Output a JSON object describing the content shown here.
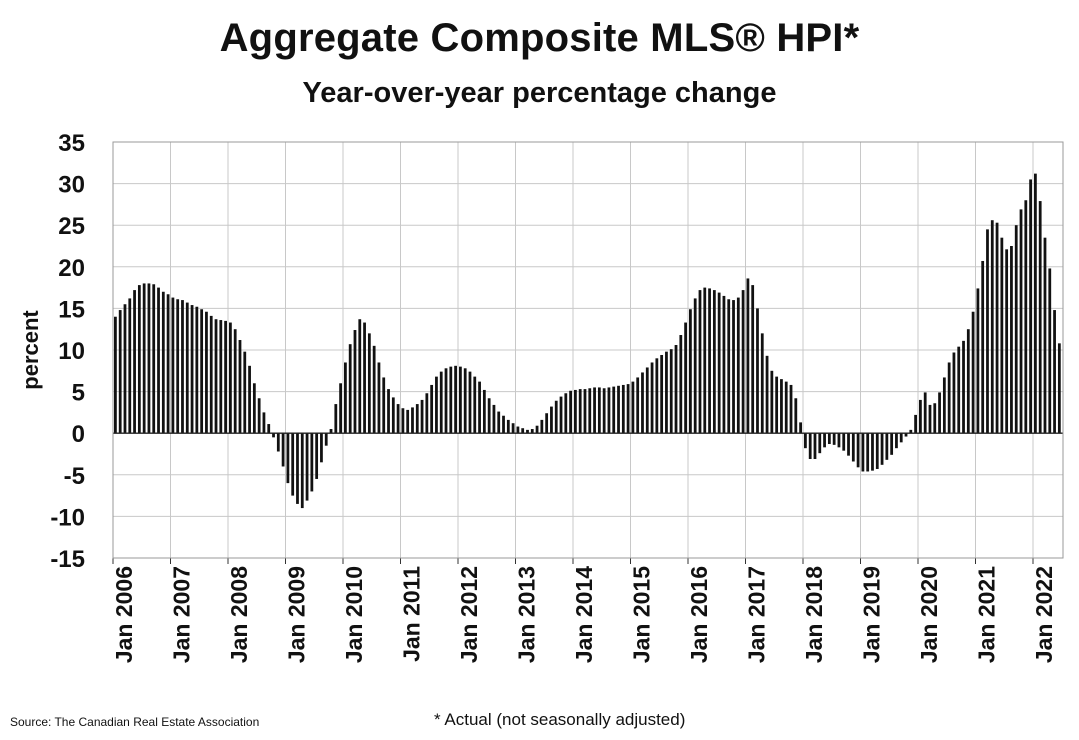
{
  "page": {
    "title": "Aggregate Composite MLS® HPI*",
    "subtitle": "Year-over-year percentage change",
    "source": "Source: The Canadian Real Estate Association",
    "footnote": "* Actual (not seasonally adjusted)"
  },
  "chart_data": {
    "type": "bar",
    "title": "Aggregate Composite MLS® HPI*",
    "subtitle": "Year-over-year percentage change",
    "ylabel": "percent",
    "xlabel": "",
    "ylim": [
      -15,
      35
    ],
    "yticks": [
      35,
      30,
      25,
      20,
      15,
      10,
      5,
      0,
      -5,
      -10,
      -15
    ],
    "grid": true,
    "legend": "none",
    "start": "Jan 2006",
    "xtick_labels": [
      "Jan 2006",
      "Jan 2007",
      "Jan 2008",
      "Jan 2009",
      "Jan 2010",
      "Jan 2011",
      "Jan 2012",
      "Jan 2013",
      "Jan 2014",
      "Jan 2015",
      "Jan 2016",
      "Jan 2017",
      "Jan 2018",
      "Jan 2019",
      "Jan 2020",
      "Jan 2021",
      "Jan 2022"
    ],
    "series": [
      {
        "name": "Year-over-year % change (monthly)",
        "values": [
          14.0,
          14.8,
          15.5,
          16.2,
          17.2,
          17.8,
          18.0,
          18.0,
          17.9,
          17.5,
          17.0,
          16.7,
          16.3,
          16.1,
          16.0,
          15.7,
          15.4,
          15.2,
          14.9,
          14.6,
          14.1,
          13.7,
          13.6,
          13.5,
          13.3,
          12.5,
          11.2,
          9.8,
          8.1,
          6.0,
          4.2,
          2.5,
          1.1,
          -0.5,
          -2.2,
          -4.0,
          -6.0,
          -7.5,
          -8.5,
          -9.0,
          -8.1,
          -7.0,
          -5.5,
          -3.5,
          -1.5,
          0.5,
          3.5,
          6.0,
          8.5,
          10.7,
          12.4,
          13.7,
          13.3,
          12.0,
          10.5,
          8.5,
          6.7,
          5.3,
          4.3,
          3.5,
          3.0,
          2.8,
          3.1,
          3.5,
          4.0,
          4.8,
          5.8,
          6.8,
          7.4,
          7.8,
          8.0,
          8.1,
          8.0,
          7.8,
          7.4,
          6.8,
          6.2,
          5.2,
          4.2,
          3.4,
          2.6,
          2.1,
          1.6,
          1.2,
          0.8,
          0.6,
          0.4,
          0.5,
          0.9,
          1.6,
          2.4,
          3.2,
          3.9,
          4.4,
          4.8,
          5.1,
          5.2,
          5.3,
          5.3,
          5.4,
          5.5,
          5.5,
          5.4,
          5.5,
          5.6,
          5.7,
          5.8,
          5.9,
          6.2,
          6.7,
          7.3,
          7.9,
          8.5,
          9.0,
          9.4,
          9.8,
          10.1,
          10.6,
          11.8,
          13.3,
          14.9,
          16.2,
          17.2,
          17.5,
          17.4,
          17.2,
          16.9,
          16.5,
          16.1,
          16.0,
          16.3,
          17.2,
          18.6,
          17.8,
          15.0,
          12.0,
          9.3,
          7.5,
          6.8,
          6.5,
          6.2,
          5.8,
          4.2,
          1.3,
          -1.8,
          -3.1,
          -3.1,
          -2.4,
          -1.7,
          -1.3,
          -1.4,
          -1.7,
          -2.1,
          -2.7,
          -3.4,
          -4.1,
          -4.6,
          -4.6,
          -4.5,
          -4.3,
          -3.8,
          -3.2,
          -2.6,
          -1.8,
          -1.1,
          -0.4,
          0.4,
          2.2,
          4.0,
          4.9,
          3.4,
          3.6,
          4.9,
          6.7,
          8.5,
          9.7,
          10.4,
          11.1,
          12.5,
          14.6,
          17.4,
          20.7,
          24.5,
          25.6,
          25.3,
          23.5,
          22.1,
          22.5,
          25.0,
          26.9,
          28.0,
          30.5,
          31.2,
          27.9,
          23.5,
          19.8,
          14.8,
          10.8
        ]
      }
    ]
  }
}
